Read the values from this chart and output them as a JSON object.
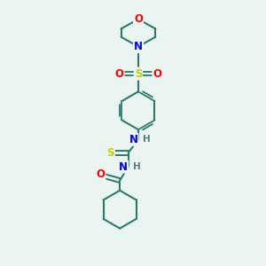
{
  "background_color": "#eaf4f0",
  "bond_color": "#2d7a6a",
  "atom_colors": {
    "O": "#ff0000",
    "N": "#0000ee",
    "S": "#cccc00",
    "H": "#5a7a7a",
    "C": "#2d7a6a"
  },
  "figure_size": [
    3.0,
    3.0
  ],
  "dpi": 100,
  "xlim": [
    0,
    10
  ],
  "ylim": [
    0,
    10
  ]
}
